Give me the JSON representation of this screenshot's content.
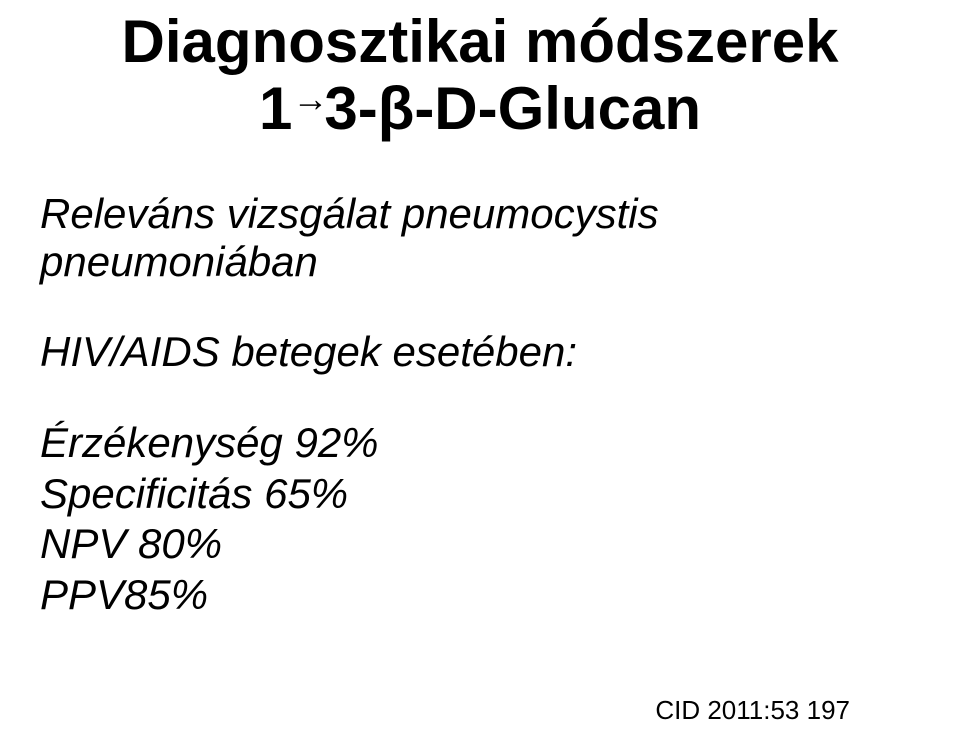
{
  "title": {
    "line1": "Diagnosztikai módszerek",
    "line2_prefix": "1",
    "line2_arrow": "→",
    "line2_suffix": "3-β-D-Glucan"
  },
  "body": {
    "line1": "Releváns vizsgálat pneumocystis pneumoniában",
    "line2": "HIV/AIDS betegek esetében:",
    "metrics": [
      "Érzékenység 92%",
      "Specificitás 65%",
      "NPV 80%",
      "PPV85%"
    ]
  },
  "citation": "CID 2011:53 197",
  "colors": {
    "background": "#ffffff",
    "text": "#000000"
  }
}
